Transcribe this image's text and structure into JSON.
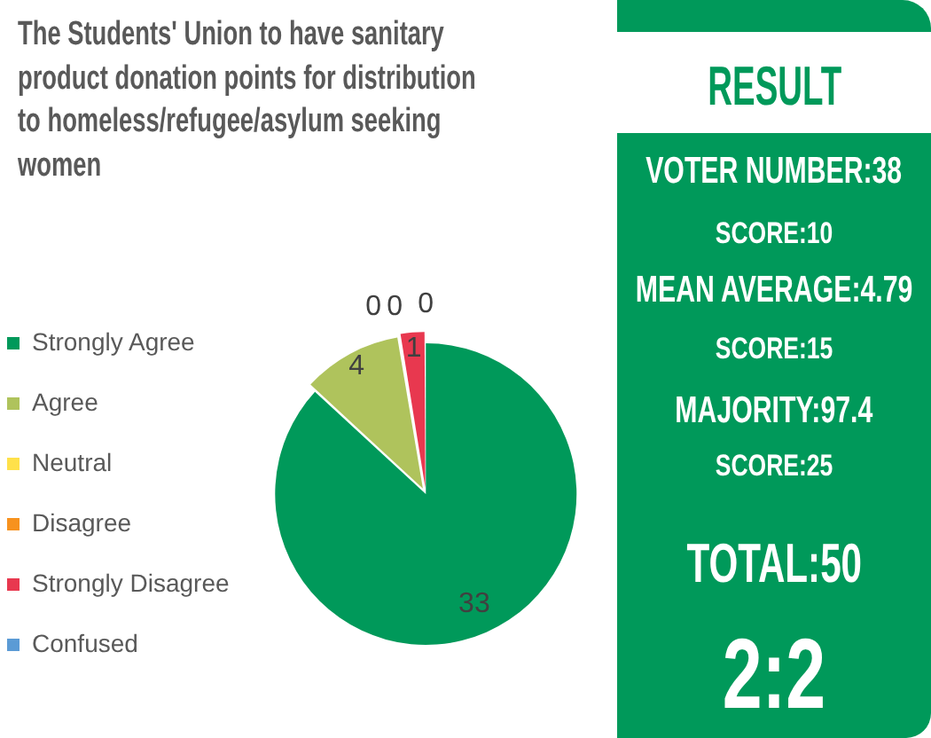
{
  "chart_data": [
    {
      "type": "pie",
      "title": "The Students' Union to have sanitary product donation points for distribution to homeless/refugee/asylum seeking women",
      "categories": [
        "Strongly Agree",
        "Agree",
        "Neutral",
        "Disagree",
        "Strongly Disagree",
        "Confused"
      ],
      "values": [
        33,
        4,
        0,
        0,
        1,
        0
      ],
      "value_labels": [
        "33",
        "4",
        "0",
        "0",
        "1",
        "0"
      ],
      "colors": [
        "#00995a",
        "#afc35c",
        "#ffe14a",
        "#f7921e",
        "#e8384f",
        "#5b9bd5"
      ],
      "legend": "left"
    },
    {
      "type": "other",
      "title": "RESULT",
      "annotations": [
        "VOTER NUMBER:38",
        "SCORE:10",
        "MEAN AVERAGE:4.79",
        "SCORE:15",
        "MAJORITY:97.4",
        "SCORE:25",
        "TOTAL:50",
        "2:2"
      ]
    }
  ]
}
